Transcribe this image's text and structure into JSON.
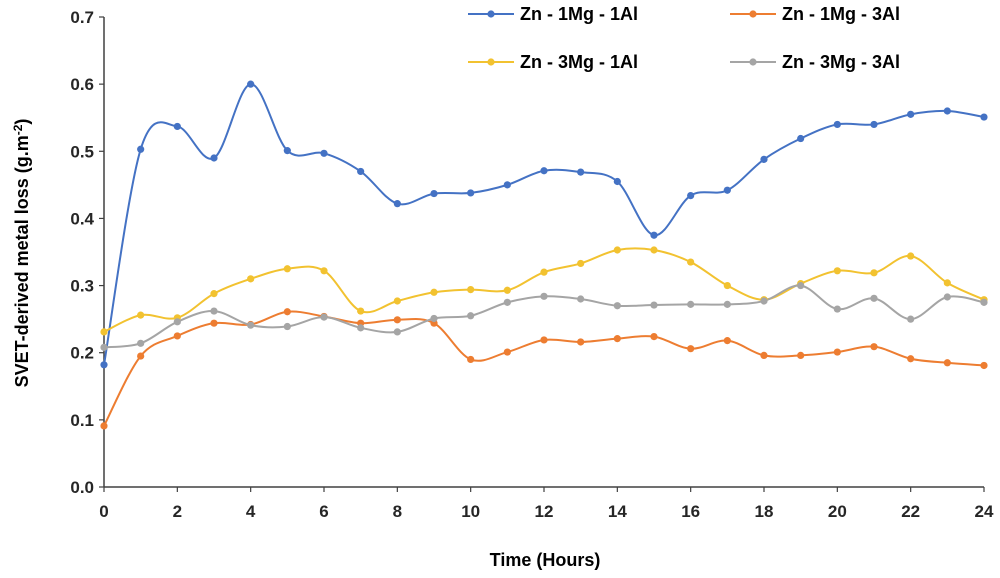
{
  "chart_data": {
    "type": "line",
    "smooth": true,
    "title": "",
    "xlabel": "Time (Hours)",
    "ylabel_main": "SVET-derived metal loss (g.m",
    "ylabel_sup": "-2",
    "ylabel_close": ")",
    "xlim": [
      0,
      24
    ],
    "ylim": [
      0,
      0.7
    ],
    "x_ticks": [
      "0",
      "2",
      "4",
      "6",
      "8",
      "10",
      "12",
      "14",
      "16",
      "18",
      "20",
      "22",
      "24"
    ],
    "y_ticks": [
      "0.0",
      "0.1",
      "0.2",
      "0.3",
      "0.4",
      "0.5",
      "0.6",
      "0.7"
    ],
    "grid": false,
    "legend_position": "top",
    "x": [
      0,
      1,
      2,
      3,
      4,
      5,
      6,
      7,
      8,
      9,
      10,
      11,
      12,
      13,
      14,
      15,
      16,
      17,
      18,
      19,
      20,
      21,
      22,
      23,
      24
    ],
    "series": [
      {
        "name": "Zn - 1Mg - 1Al",
        "color": "#4472C4",
        "values": [
          0.182,
          0.503,
          0.537,
          0.49,
          0.6,
          0.501,
          0.497,
          0.47,
          0.422,
          0.437,
          0.438,
          0.45,
          0.471,
          0.469,
          0.455,
          0.375,
          0.434,
          0.442,
          0.488,
          0.519,
          0.54,
          0.54,
          0.555,
          0.56,
          0.551
        ]
      },
      {
        "name": "Zn - 1Mg - 3Al",
        "color": "#ED7D31",
        "values": [
          0.091,
          0.195,
          0.225,
          0.244,
          0.242,
          0.261,
          0.254,
          0.244,
          0.249,
          0.244,
          0.19,
          0.201,
          0.219,
          0.216,
          0.221,
          0.224,
          0.206,
          0.218,
          0.196,
          0.196,
          0.201,
          0.209,
          0.191,
          0.185,
          0.181
        ]
      },
      {
        "name": "Zn - 3Mg - 1Al",
        "color": "#F2C230",
        "values": [
          0.231,
          0.256,
          0.252,
          0.288,
          0.31,
          0.325,
          0.322,
          0.262,
          0.277,
          0.29,
          0.294,
          0.293,
          0.32,
          0.333,
          0.353,
          0.353,
          0.335,
          0.3,
          0.279,
          0.303,
          0.322,
          0.319,
          0.344,
          0.304,
          0.279
        ]
      },
      {
        "name": "Zn - 3Mg - 3Al",
        "color": "#A5A5A5",
        "values": [
          0.208,
          0.214,
          0.246,
          0.262,
          0.241,
          0.239,
          0.253,
          0.237,
          0.231,
          0.251,
          0.255,
          0.275,
          0.284,
          0.28,
          0.27,
          0.271,
          0.272,
          0.272,
          0.277,
          0.3,
          0.265,
          0.281,
          0.25,
          0.283,
          0.275
        ]
      }
    ]
  }
}
